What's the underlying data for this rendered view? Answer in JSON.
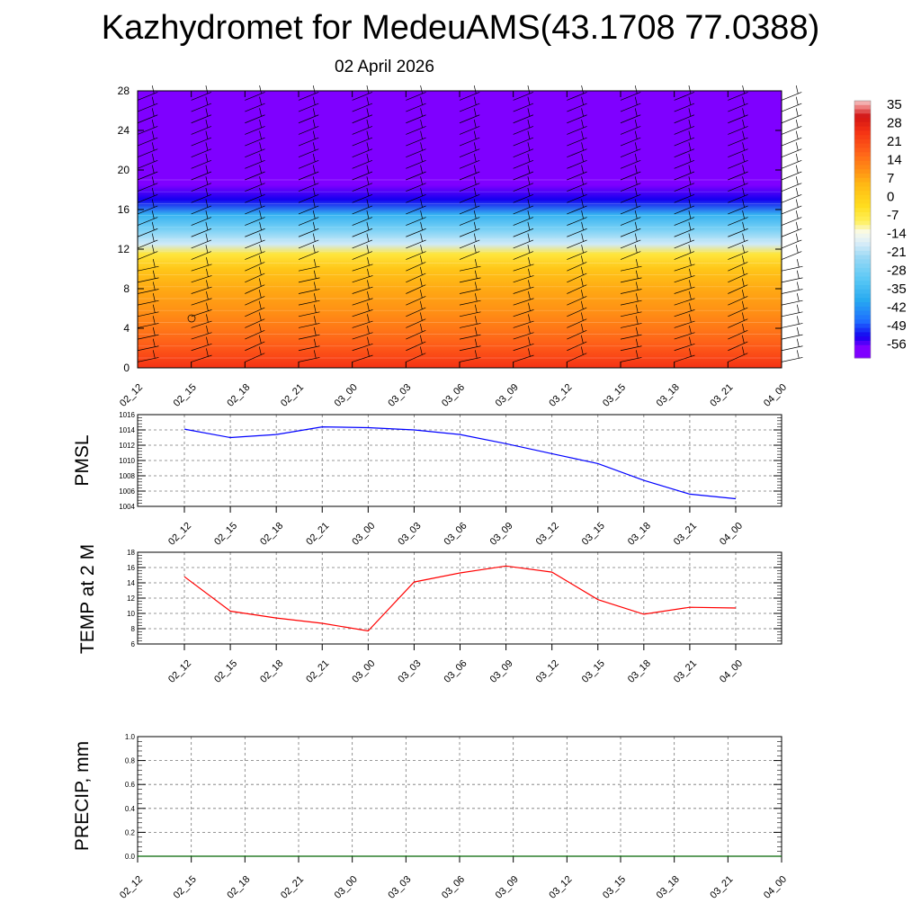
{
  "header": {
    "title": "Kazhydromet for MedeuAMS(43.1708 77.0388)",
    "subtitle": "02 April 2026"
  },
  "time_labels": [
    "02_12",
    "02_15",
    "02_18",
    "02_21",
    "03_00",
    "03_03",
    "03_06",
    "03_09",
    "03_12",
    "03_15",
    "03_18",
    "03_21",
    "04_00"
  ],
  "colors": {
    "pmsl_line": "#0000ff",
    "temp_line": "#ff0000",
    "precip_line": "#006400",
    "grid": "#777777",
    "axis": "#000000"
  },
  "chart_data": [
    {
      "id": "cross_section",
      "type": "heatmap",
      "title": "",
      "xlabel": "",
      "ylabel": "",
      "x": [
        "02_12",
        "02_15",
        "02_18",
        "02_21",
        "03_00",
        "03_03",
        "03_06",
        "03_09",
        "03_12",
        "03_15",
        "03_18",
        "03_21",
        "04_00"
      ],
      "yticks": [
        0,
        4,
        8,
        12,
        16,
        20,
        24,
        28
      ],
      "ylim": [
        0,
        28
      ],
      "colorbar": {
        "labels": [
          "35",
          "28",
          "21",
          "14",
          "7",
          "0",
          "-7",
          "-14",
          "-21",
          "-28",
          "-35",
          "-42",
          "-49",
          "-56"
        ],
        "range": [
          -60,
          38
        ]
      },
      "temperature_profile": [
        {
          "height": 0,
          "value": 26
        },
        {
          "height": 2,
          "value": 20
        },
        {
          "height": 4,
          "value": 15
        },
        {
          "height": 6,
          "value": 11
        },
        {
          "height": 8,
          "value": 8
        },
        {
          "height": 10,
          "value": 3
        },
        {
          "height": 11.5,
          "value": -5
        },
        {
          "height": 12.5,
          "value": -17
        },
        {
          "height": 14,
          "value": -26
        },
        {
          "height": 15.5,
          "value": -36
        },
        {
          "height": 17,
          "value": -52
        },
        {
          "height": 18.5,
          "value": -58
        },
        {
          "height": 28,
          "value": -58
        }
      ],
      "wind_barbs": "wind barbs at every time step and height level"
    },
    {
      "id": "pmsl",
      "type": "line",
      "ylabel": "PMSL",
      "x": [
        "02_12",
        "02_15",
        "02_18",
        "02_21",
        "03_00",
        "03_03",
        "03_06",
        "03_09",
        "03_12",
        "03_15",
        "03_18",
        "03_21",
        "04_00"
      ],
      "ylim": [
        1004,
        1016
      ],
      "yticks": [
        "1004",
        "1006",
        "1008",
        "1010",
        "1012",
        "1014",
        "1016"
      ],
      "series": [
        {
          "name": "PMSL",
          "values": [
            1014.1,
            1013.0,
            1013.4,
            1014.4,
            1014.3,
            1014.0,
            1013.4,
            1012.2,
            1010.9,
            1009.6,
            1007.4,
            1005.6,
            1005.0
          ]
        }
      ]
    },
    {
      "id": "temp2m",
      "type": "line",
      "ylabel": "TEMP at 2 M",
      "x": [
        "02_12",
        "02_15",
        "02_18",
        "02_21",
        "03_00",
        "03_03",
        "03_06",
        "03_09",
        "03_12",
        "03_15",
        "03_18",
        "03_21",
        "04_00"
      ],
      "ylim": [
        6,
        18
      ],
      "yticks": [
        "6",
        "8",
        "10",
        "12",
        "14",
        "16",
        "18"
      ],
      "series": [
        {
          "name": "TEMP at 2 M",
          "values": [
            14.8,
            10.3,
            9.4,
            8.7,
            7.7,
            14.1,
            15.3,
            16.2,
            15.4,
            11.8,
            9.9,
            10.8,
            10.7
          ]
        }
      ]
    },
    {
      "id": "precip",
      "type": "line",
      "ylabel": "PRECIP, mm",
      "x": [
        "02_12",
        "02_15",
        "02_18",
        "02_21",
        "03_00",
        "03_03",
        "03_06",
        "03_09",
        "03_12",
        "03_15",
        "03_18",
        "03_21",
        "04_00"
      ],
      "ylim": [
        0,
        1
      ],
      "yticks": [
        "0.0",
        "0.2",
        "0.4",
        "0.6",
        "0.8",
        "1.0"
      ],
      "series": [
        {
          "name": "PRECIP",
          "values": [
            0,
            0,
            0,
            0,
            0,
            0,
            0,
            0,
            0,
            0,
            0,
            0,
            0
          ]
        }
      ]
    }
  ]
}
